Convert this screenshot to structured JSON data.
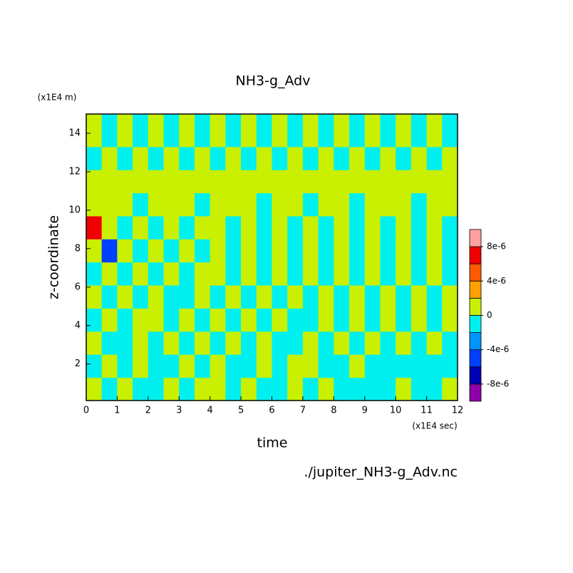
{
  "chart_data": {
    "type": "contour",
    "title": "NH3-g_Adv",
    "x_label": "time",
    "x_unit": "(x1E4 sec)",
    "y_label": "z-coordinate",
    "y_unit": "(x1E4 m)",
    "source": "./jupiter_NH3-g_Adv.nc",
    "xlim": [
      0,
      12
    ],
    "xticks": [
      0,
      1,
      2,
      3,
      4,
      5,
      6,
      7,
      8,
      9,
      10,
      11,
      12
    ],
    "ylim": [
      0.1,
      15
    ],
    "yticks": [
      2,
      4,
      6,
      8,
      10,
      12,
      14
    ],
    "x": [
      0.25,
      0.75,
      1.25,
      1.75,
      2.25,
      2.75,
      3.25,
      3.75,
      4.25,
      4.75,
      5.25,
      5.75,
      6.25,
      6.75,
      7.25,
      7.75,
      8.25,
      8.75,
      9.25,
      9.75,
      10.25,
      10.75,
      11.25,
      11.75
    ],
    "y": [
      0.7,
      1.9,
      3.1,
      4.3,
      5.5,
      6.7,
      7.9,
      9.1,
      10.3,
      11.5,
      12.7,
      13.9
    ],
    "z": [
      [
        1e-06,
        -1e-06,
        1e-06,
        -1e-06,
        -1e-06,
        1e-06,
        -1e-06,
        1e-06,
        1e-06,
        -1e-06,
        1e-06,
        -1e-06,
        -1e-06,
        1e-06,
        -1e-06,
        1e-06,
        -1e-06,
        -1e-06,
        -1e-06,
        -1e-06,
        1e-06,
        -1e-06,
        -1e-06,
        1e-06
      ],
      [
        -1e-06,
        1e-06,
        -1e-06,
        1e-06,
        -1e-06,
        -1e-06,
        1e-06,
        -1e-06,
        1e-06,
        -1e-06,
        -1e-06,
        1e-06,
        -1e-06,
        1e-06,
        1e-06,
        -1e-06,
        -1e-06,
        1e-06,
        -1e-06,
        -1e-06,
        -1e-06,
        -1e-06,
        -1e-06,
        -1e-06
      ],
      [
        1e-06,
        -1e-06,
        -1e-06,
        1e-06,
        -1e-06,
        1e-06,
        -1e-06,
        1e-06,
        -1e-06,
        1e-06,
        -1e-06,
        1e-06,
        -1e-06,
        -1e-06,
        1e-06,
        -1e-06,
        1e-06,
        -1e-06,
        1e-06,
        -1e-06,
        1e-06,
        -1e-06,
        1e-06,
        -1e-06
      ],
      [
        -1e-06,
        1e-06,
        -1e-06,
        1e-06,
        1e-06,
        -1e-06,
        1e-06,
        -1e-06,
        1e-06,
        -1e-06,
        1e-06,
        -1e-06,
        1e-06,
        -1e-06,
        -1e-06,
        1e-06,
        -1e-06,
        1e-06,
        -1e-06,
        1e-06,
        -1e-06,
        1e-06,
        -1e-06,
        1e-06
      ],
      [
        1e-06,
        -1e-06,
        1e-06,
        -1e-06,
        1e-06,
        -1e-06,
        -1e-06,
        1e-06,
        -1e-06,
        1e-06,
        -1e-06,
        1e-06,
        -1e-06,
        1e-06,
        -1e-06,
        1e-06,
        -1e-06,
        1e-06,
        -1e-06,
        1e-06,
        -1e-06,
        1e-06,
        -1e-06,
        1e-06
      ],
      [
        -1e-06,
        1e-06,
        -1e-06,
        1e-06,
        -1e-06,
        1e-06,
        -1e-06,
        1e-06,
        1e-06,
        -1e-06,
        1e-06,
        -1e-06,
        1e-06,
        -1e-06,
        1e-06,
        -1e-06,
        1e-06,
        -1e-06,
        1e-06,
        -1e-06,
        1e-06,
        -1e-06,
        1e-06,
        -1e-06
      ],
      [
        1e-06,
        -5e-06,
        1e-06,
        -1e-06,
        1e-06,
        -1e-06,
        1e-06,
        -1e-06,
        1e-06,
        -1e-06,
        1e-06,
        -1e-06,
        1e-06,
        -1e-06,
        1e-06,
        -1e-06,
        1e-06,
        -1e-06,
        1e-06,
        -1e-06,
        1e-06,
        -1e-06,
        1e-06,
        -1e-06
      ],
      [
        7e-06,
        1e-06,
        -1e-06,
        1e-06,
        -1e-06,
        1e-06,
        -1e-06,
        1e-06,
        1e-06,
        -1e-06,
        1e-06,
        -1e-06,
        1e-06,
        -1e-06,
        1e-06,
        -1e-06,
        1e-06,
        -1e-06,
        1e-06,
        -1e-06,
        1e-06,
        -1e-06,
        1e-06,
        -1e-06
      ],
      [
        1e-06,
        1e-06,
        1e-06,
        -1e-06,
        1e-06,
        1e-06,
        1e-06,
        -1e-06,
        1e-06,
        1e-06,
        1e-06,
        -1e-06,
        1e-06,
        1e-06,
        -1e-06,
        1e-06,
        1e-06,
        -1e-06,
        1e-06,
        1e-06,
        1e-06,
        -1e-06,
        1e-06,
        1e-06
      ],
      [
        1e-06,
        1e-06,
        1e-06,
        1e-06,
        1e-06,
        1e-06,
        1e-06,
        1e-06,
        1e-06,
        1e-06,
        1e-06,
        1e-06,
        1e-06,
        1e-06,
        1e-06,
        1e-06,
        1e-06,
        1e-06,
        1e-06,
        1e-06,
        1e-06,
        1e-06,
        1e-06,
        1e-06
      ],
      [
        -1e-06,
        1e-06,
        -1e-06,
        1e-06,
        -1e-06,
        1e-06,
        -1e-06,
        1e-06,
        -1e-06,
        1e-06,
        -1e-06,
        1e-06,
        -1e-06,
        1e-06,
        -1e-06,
        1e-06,
        -1e-06,
        1e-06,
        -1e-06,
        1e-06,
        -1e-06,
        1e-06,
        -1e-06,
        1e-06
      ],
      [
        1e-06,
        -1e-06,
        1e-06,
        -1e-06,
        1e-06,
        -1e-06,
        1e-06,
        -1e-06,
        1e-06,
        -1e-06,
        1e-06,
        -1e-06,
        1e-06,
        -1e-06,
        1e-06,
        -1e-06,
        1e-06,
        -1e-06,
        1e-06,
        -1e-06,
        1e-06,
        -1e-06,
        1e-06,
        -1e-06
      ]
    ],
    "levels": [
      -1e-05,
      -8e-06,
      -6e-06,
      -4e-06,
      -2e-06,
      0,
      2e-06,
      4e-06,
      6e-06,
      8e-06,
      1e-05
    ],
    "colors": [
      "#9000a8",
      "#0000b4",
      "#0040ff",
      "#0094ff",
      "#00f0f0",
      "#c8f000",
      "#ffa000",
      "#ff5a00",
      "#f00000",
      "#ffa0a0"
    ],
    "cticks": [
      {
        "value": 8e-06,
        "label": "8e-6"
      },
      {
        "value": 4e-06,
        "label": "4e-6"
      },
      {
        "value": 0,
        "label": "0"
      },
      {
        "value": -4e-06,
        "label": "-4e-6"
      },
      {
        "value": -8e-06,
        "label": "-8e-6"
      }
    ]
  }
}
